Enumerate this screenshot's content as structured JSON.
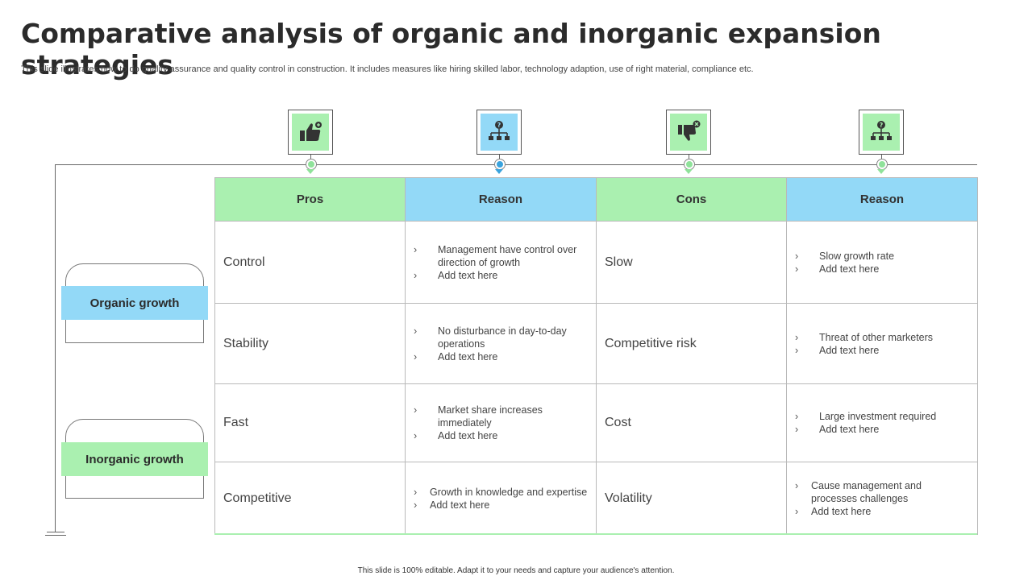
{
  "title": "Comparative analysis of organic and inorganic expansion strategies",
  "subtitle": "This slide illustrates how to do quality assurance and quality control in construction. It includes measures like hiring skilled labor, technology adaption, use  of right material, compliance etc.",
  "footer": "This slide is 100% editable.  Adapt it to your needs and capture your audience's attention.",
  "colors": {
    "green": "#aaf0b0",
    "blue": "#93d9f7",
    "pin_green": "#8fe29a",
    "pin_blue": "#3aa3dd"
  },
  "icons": [
    "thumbs-up-icon",
    "question-hierarchy-icon",
    "thumbs-down-icon",
    "question-hierarchy-icon"
  ],
  "headers": [
    "Pros",
    "Reason",
    "Cons",
    "Reason"
  ],
  "groups": [
    "Organic growth",
    "Inorganic growth"
  ],
  "rows": [
    {
      "pro": "Control",
      "pro_reason": [
        "Management have control over direction of growth",
        "Add text here"
      ],
      "con": "Slow",
      "con_reason": [
        "Slow growth rate",
        "Add text here"
      ]
    },
    {
      "pro": "Stability",
      "pro_reason": [
        "No disturbance in day-to-day operations",
        "Add text here"
      ],
      "con": "Competitive risk",
      "con_reason": [
        "Threat of other marketers",
        "Add text here"
      ]
    },
    {
      "pro": "Fast",
      "pro_reason": [
        "Market share increases immediately",
        "Add text here"
      ],
      "con": "Cost",
      "con_reason": [
        "Large investment required",
        "Add text here"
      ]
    },
    {
      "pro": "Competitive",
      "pro_reason": [
        "Growth in knowledge and expertise",
        "Add text here"
      ],
      "con": "Volatility",
      "con_reason": [
        "Cause management and processes challenges",
        "Add text here"
      ]
    }
  ]
}
